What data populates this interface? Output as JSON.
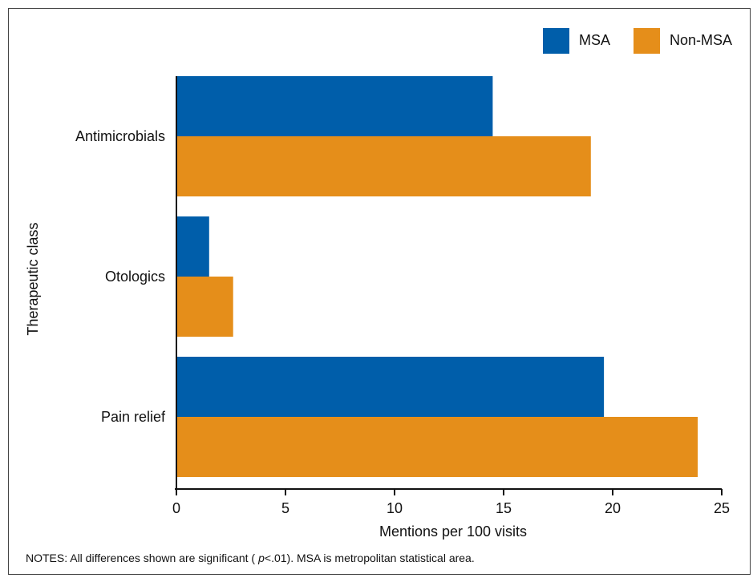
{
  "chart_data": {
    "type": "bar",
    "orientation": "horizontal",
    "categories": [
      "Antimicrobials",
      "Otologics",
      "Pain relief"
    ],
    "series": [
      {
        "name": "MSA",
        "color": "#005eaa",
        "values": [
          14.5,
          1.5,
          19.6
        ]
      },
      {
        "name": "Non-MSA",
        "color": "#e58e1a",
        "values": [
          19.0,
          2.6,
          23.9
        ]
      }
    ],
    "xlabel": "Mentions per 100 visits",
    "ylabel": "Therapeutic class",
    "xlim": [
      0,
      25
    ],
    "xticks": [
      "0",
      "5",
      "10",
      "15",
      "20",
      "25"
    ],
    "grid": false,
    "legend_position": "top-right"
  },
  "notes": {
    "prefix": "NOTES: All differences shown are significant (",
    "p_symbol": "p",
    "suffix": "<.01). MSA is metropolitan statistical area."
  }
}
